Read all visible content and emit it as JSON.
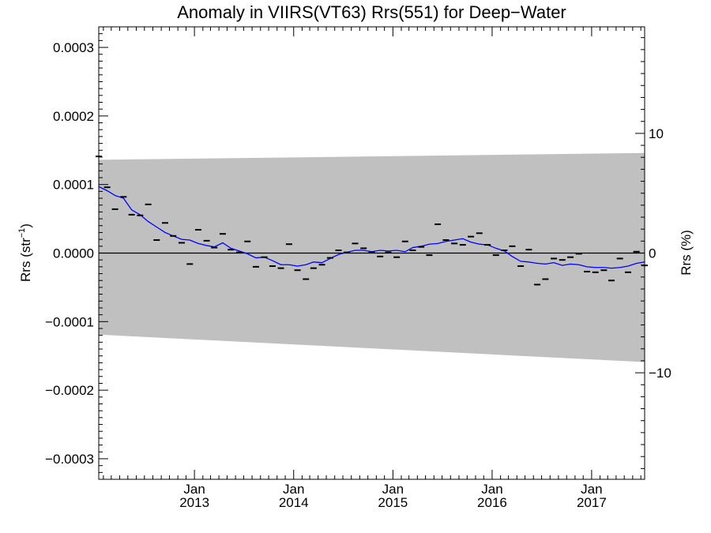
{
  "chart_data": {
    "type": "scatter",
    "title": "Anomaly in VIIRS(VT63) Rrs(551) for Deep−Water",
    "ylabel_left_main": "Rrs (str",
    "ylabel_left_sup": "−1",
    "ylabel_left_close": ")",
    "ylabel_right": "Rrs (%)",
    "xlim": [
      "2012-01-15",
      "2017-07-15"
    ],
    "ylim_left": [
      -0.00033,
      0.00033
    ],
    "ylim_right": [
      -18.9,
      18.9
    ],
    "left_ticks": [
      {
        "value": 0.0003,
        "label": "0.0003"
      },
      {
        "value": 0.0002,
        "label": "0.0002"
      },
      {
        "value": 0.0001,
        "label": "0.0001"
      },
      {
        "value": 0.0,
        "label": "0.0000"
      },
      {
        "value": -0.0001,
        "label": "−0.0001"
      },
      {
        "value": -0.0002,
        "label": "−0.0002"
      },
      {
        "value": -0.0003,
        "label": "−0.0003"
      }
    ],
    "right_ticks": [
      {
        "value": 10,
        "label": "10"
      },
      {
        "value": 0,
        "label": "0"
      },
      {
        "value": -10,
        "label": "−10"
      }
    ],
    "x_ticks": [
      {
        "date": "2013-01-01",
        "month": "Jan",
        "year": "2013"
      },
      {
        "date": "2014-01-01",
        "month": "Jan",
        "year": "2014"
      },
      {
        "date": "2015-01-01",
        "month": "Jan",
        "year": "2015"
      },
      {
        "date": "2016-01-01",
        "month": "Jan",
        "year": "2016"
      },
      {
        "date": "2017-01-01",
        "month": "Jan",
        "year": "2017"
      }
    ],
    "uncertainty_band": {
      "upper": [
        [
          "2012-01-15",
          0.000136
        ],
        [
          "2017-07-15",
          0.000146
        ]
      ],
      "lower": [
        [
          "2012-01-15",
          -0.000119
        ],
        [
          "2017-07-15",
          -0.000159
        ]
      ],
      "color": "#c0c0c0"
    },
    "zero_line": {
      "value": 0.0,
      "color": "#000000"
    },
    "series": [
      {
        "role": "monthly anomaly markers",
        "color": "#000000",
        "points": [
          [
            "2012-01-15",
            0.000141
          ],
          [
            "2012-02-15",
            9.6e-05
          ],
          [
            "2012-03-15",
            6.4e-05
          ],
          [
            "2012-04-15",
            8.2e-05
          ],
          [
            "2012-05-15",
            5.6e-05
          ],
          [
            "2012-06-15",
            5.5e-05
          ],
          [
            "2012-07-15",
            7.1e-05
          ],
          [
            "2012-08-15",
            1.9e-05
          ],
          [
            "2012-09-15",
            4.4e-05
          ],
          [
            "2012-10-15",
            2.5e-05
          ],
          [
            "2012-11-15",
            1.5e-05
          ],
          [
            "2012-12-15",
            -1.6e-05
          ],
          [
            "2013-01-15",
            3.4e-05
          ],
          [
            "2013-02-15",
            1.8e-05
          ],
          [
            "2013-03-15",
            8e-06
          ],
          [
            "2013-04-15",
            2.8e-05
          ],
          [
            "2013-05-15",
            5e-06
          ],
          [
            "2013-06-15",
            1e-06
          ],
          [
            "2013-07-15",
            1.7e-05
          ],
          [
            "2013-08-15",
            -2e-05
          ],
          [
            "2013-09-15",
            -6e-06
          ],
          [
            "2013-10-15",
            -1.9e-05
          ],
          [
            "2013-11-15",
            -2.2e-05
          ],
          [
            "2013-12-15",
            1.3e-05
          ],
          [
            "2014-01-15",
            -2.5e-05
          ],
          [
            "2014-02-15",
            -3.8e-05
          ],
          [
            "2014-03-15",
            -2.2e-05
          ],
          [
            "2014-04-15",
            -1.7e-05
          ],
          [
            "2014-05-15",
            -7e-06
          ],
          [
            "2014-06-15",
            4e-06
          ],
          [
            "2014-07-15",
            1e-06
          ],
          [
            "2014-08-15",
            1.4e-05
          ],
          [
            "2014-09-15",
            7e-06
          ],
          [
            "2014-10-15",
            1e-06
          ],
          [
            "2014-11-15",
            -5e-06
          ],
          [
            "2014-12-15",
            1e-06
          ],
          [
            "2015-01-15",
            -6e-06
          ],
          [
            "2015-02-15",
            1.7e-05
          ],
          [
            "2015-03-15",
            4e-06
          ],
          [
            "2015-04-15",
            9e-06
          ],
          [
            "2015-05-15",
            -3e-06
          ],
          [
            "2015-06-15",
            4.2e-05
          ],
          [
            "2015-07-15",
            1.9e-05
          ],
          [
            "2015-08-15",
            1.4e-05
          ],
          [
            "2015-09-15",
            1.2e-05
          ],
          [
            "2015-10-15",
            2.4e-05
          ],
          [
            "2015-11-15",
            2.9e-05
          ],
          [
            "2015-12-15",
            1.2e-05
          ],
          [
            "2016-01-15",
            -3e-06
          ],
          [
            "2016-02-15",
            4e-06
          ],
          [
            "2016-03-15",
            1e-05
          ],
          [
            "2016-04-15",
            -1.9e-05
          ],
          [
            "2016-05-15",
            5e-06
          ],
          [
            "2016-06-15",
            -4.6e-05
          ],
          [
            "2016-07-15",
            -3.8e-05
          ],
          [
            "2016-08-15",
            -8e-06
          ],
          [
            "2016-09-15",
            -1e-05
          ],
          [
            "2016-10-15",
            -6e-06
          ],
          [
            "2016-11-15",
            -1e-06
          ],
          [
            "2016-12-15",
            -2.7e-05
          ],
          [
            "2017-01-15",
            -2.8e-05
          ],
          [
            "2017-02-15",
            -2.5e-05
          ],
          [
            "2017-03-15",
            -4e-05
          ],
          [
            "2017-04-15",
            -8e-06
          ],
          [
            "2017-05-15",
            -2.8e-05
          ],
          [
            "2017-06-15",
            2e-06
          ],
          [
            "2017-07-15",
            -1.8e-05
          ]
        ]
      },
      {
        "role": "smoothed anomaly line",
        "color": "#0000ff",
        "points": [
          [
            "2012-01-15",
            9.7e-05
          ],
          [
            "2012-02-15",
            9.1e-05
          ],
          [
            "2012-03-15",
            8.4e-05
          ],
          [
            "2012-04-15",
            8e-05
          ],
          [
            "2012-05-15",
            6.3e-05
          ],
          [
            "2012-06-15",
            5.6e-05
          ],
          [
            "2012-07-15",
            4.6e-05
          ],
          [
            "2012-08-15",
            3.8e-05
          ],
          [
            "2012-09-15",
            3e-05
          ],
          [
            "2012-10-15",
            2.5e-05
          ],
          [
            "2012-11-15",
            2e-05
          ],
          [
            "2012-12-15",
            1.9e-05
          ],
          [
            "2013-01-15",
            1.4e-05
          ],
          [
            "2013-02-15",
            1.1e-05
          ],
          [
            "2013-03-15",
            9e-06
          ],
          [
            "2013-04-15",
            1.5e-05
          ],
          [
            "2013-05-15",
            7e-06
          ],
          [
            "2013-06-15",
            3e-06
          ],
          [
            "2013-07-15",
            -1e-06
          ],
          [
            "2013-08-15",
            -7e-06
          ],
          [
            "2013-09-15",
            -6e-06
          ],
          [
            "2013-10-15",
            -1.1e-05
          ],
          [
            "2013-11-15",
            -1.7e-05
          ],
          [
            "2013-12-15",
            -1.7e-05
          ],
          [
            "2014-01-15",
            -1.9e-05
          ],
          [
            "2014-02-15",
            -1.7e-05
          ],
          [
            "2014-03-15",
            -1.3e-05
          ],
          [
            "2014-04-15",
            -1.4e-05
          ],
          [
            "2014-05-15",
            -8e-06
          ],
          [
            "2014-06-15",
            -2e-06
          ],
          [
            "2014-07-15",
            1e-06
          ],
          [
            "2014-08-15",
            4e-06
          ],
          [
            "2014-09-15",
            4e-06
          ],
          [
            "2014-10-15",
            2e-06
          ],
          [
            "2014-11-15",
            4e-06
          ],
          [
            "2014-12-15",
            3e-06
          ],
          [
            "2015-01-15",
            4e-06
          ],
          [
            "2015-02-15",
            2e-06
          ],
          [
            "2015-03-15",
            8e-06
          ],
          [
            "2015-04-15",
            1e-05
          ],
          [
            "2015-05-15",
            1.3e-05
          ],
          [
            "2015-06-15",
            1.4e-05
          ],
          [
            "2015-07-15",
            1.7e-05
          ],
          [
            "2015-08-15",
            1.9e-05
          ],
          [
            "2015-09-15",
            2.1e-05
          ],
          [
            "2015-10-15",
            1.6e-05
          ],
          [
            "2015-11-15",
            1.3e-05
          ],
          [
            "2015-12-15",
            1.2e-05
          ],
          [
            "2016-01-15",
            7e-06
          ],
          [
            "2016-02-15",
            3e-06
          ],
          [
            "2016-03-15",
            -5e-06
          ],
          [
            "2016-04-15",
            -1.2e-05
          ],
          [
            "2016-05-15",
            -1.3e-05
          ],
          [
            "2016-06-15",
            -1.5e-05
          ],
          [
            "2016-07-15",
            -1.6e-05
          ],
          [
            "2016-08-15",
            -1.4e-05
          ],
          [
            "2016-09-15",
            -1.8e-05
          ],
          [
            "2016-10-15",
            -1.6e-05
          ],
          [
            "2016-11-15",
            -1.7e-05
          ],
          [
            "2016-12-15",
            -2e-05
          ],
          [
            "2017-01-15",
            -2.1e-05
          ],
          [
            "2017-02-15",
            -2.1e-05
          ],
          [
            "2017-03-15",
            -2.2e-05
          ],
          [
            "2017-04-15",
            -2.1e-05
          ],
          [
            "2017-05-15",
            -1.9e-05
          ],
          [
            "2017-06-15",
            -1.5e-05
          ],
          [
            "2017-07-15",
            -1.3e-05
          ]
        ]
      }
    ]
  }
}
